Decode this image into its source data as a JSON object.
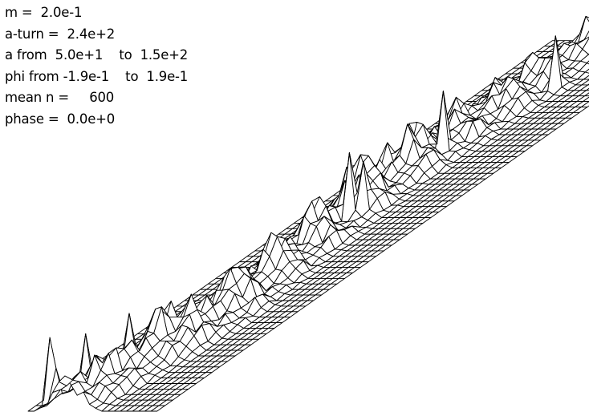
{
  "parameters": {
    "m": "m =  2.0e-1",
    "a_turn": "a-turn =  2.4e+2",
    "a_range": "a from  5.0e+1    to  1.5e+2",
    "phi_range": "phi from -1.9e-1    to  1.9e-1",
    "mean_n": "mean n =     600",
    "phase": "phase =  0.0e+0"
  },
  "surface": {
    "description_kind": "3d-wireframe-surface",
    "line_color": "#000000",
    "background_color": "#ffffff"
  }
}
